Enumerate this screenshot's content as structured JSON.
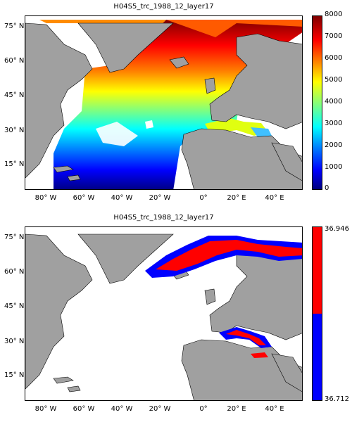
{
  "panels": [
    {
      "title": "H04S5_trc_1988_12_layer17",
      "colorbar": {
        "type": "continuous",
        "colormap": "jet",
        "min": 0,
        "max": 8000,
        "ticks": [
          "0",
          "1000",
          "2000",
          "3000",
          "4000",
          "5000",
          "6000",
          "7000",
          "8000"
        ]
      }
    },
    {
      "title": "H04S5_trc_1988_12_layer17",
      "colorbar": {
        "type": "two-class",
        "classes": [
          {
            "label": "36.946",
            "color": "#ff0000"
          },
          {
            "label": "36.712",
            "color": "#0000ff"
          }
        ]
      }
    }
  ],
  "axes": {
    "lat_ticks": [
      "75° N",
      "60° N",
      "45° N",
      "30° N",
      "15° N"
    ],
    "lon_ticks": [
      "80° W",
      "60° W",
      "40° W",
      "20° W",
      "0°",
      "20° E",
      "40° E"
    ]
  },
  "colors": {
    "land": "#a0a0a0",
    "coast": "#000000",
    "missing": "#ffffff"
  }
}
